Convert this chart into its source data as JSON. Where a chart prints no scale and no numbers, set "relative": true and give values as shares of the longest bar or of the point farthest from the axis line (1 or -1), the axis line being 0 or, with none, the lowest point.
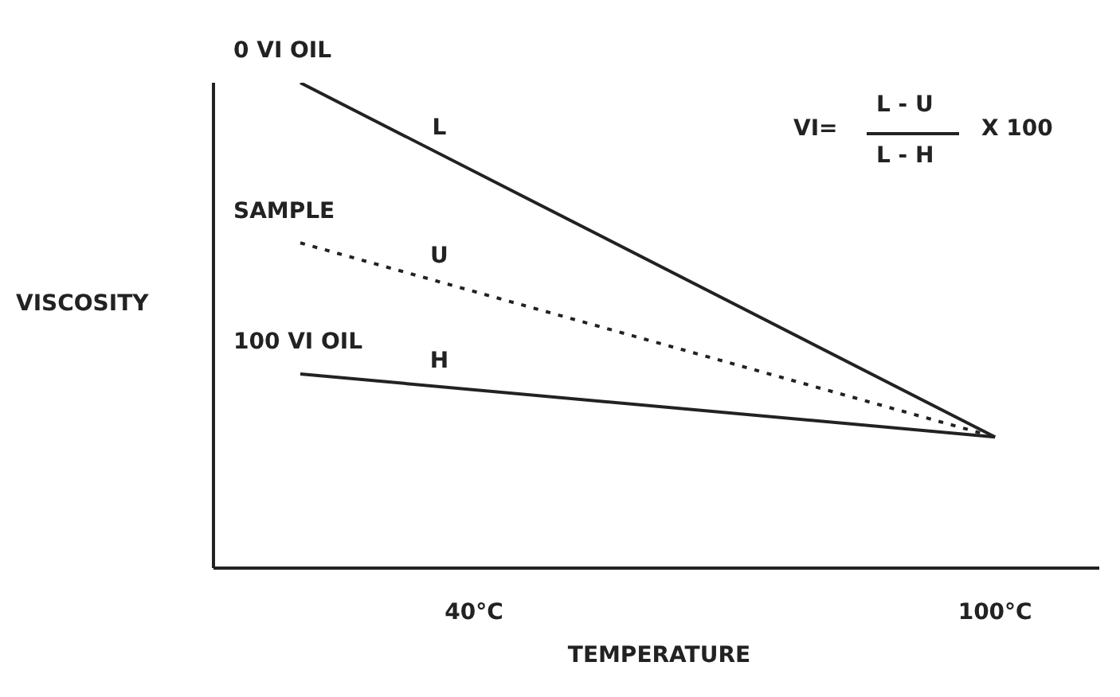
{
  "chart_data": {
    "type": "line",
    "relative": true,
    "xlabel": "TEMPERATURE",
    "ylabel": "VISCOSITY",
    "x": [
      20,
      100
    ],
    "xlim": [
      10,
      112
    ],
    "xticks": [
      {
        "value": 40,
        "label": "40°C"
      },
      {
        "value": 100,
        "label": "100°C"
      }
    ],
    "series": [
      {
        "name": "0 VI OIL",
        "color": "#222222",
        "values": [
          1,
          0.27
        ],
        "line_style": "solid"
      },
      {
        "name": "SAMPLE",
        "color": "#222222",
        "values": [
          0.67,
          0.27
        ],
        "line_style": "dotted"
      },
      {
        "name": "100 VI OIL",
        "color": "#222222",
        "values": [
          0.4,
          0.27
        ],
        "line_style": "solid"
      }
    ],
    "annotations": [
      "L",
      "U",
      "H",
      "VI=",
      "L - U",
      "L - H",
      "X 100"
    ],
    "marker": "none"
  }
}
